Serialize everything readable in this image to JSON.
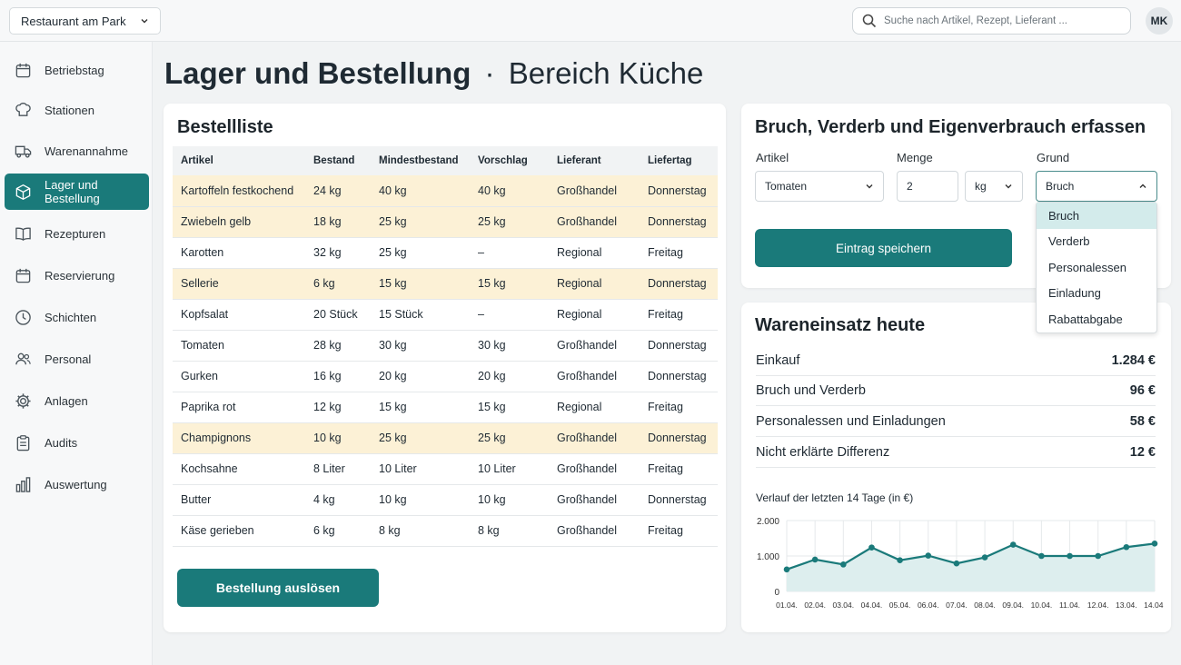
{
  "header": {
    "restaurant": "Restaurant am Park",
    "search_placeholder": "Suche nach Artikel, Rezept, Lieferant ...",
    "user_initials": "MK"
  },
  "sidebar": {
    "items": [
      {
        "label": "Betriebstag",
        "icon": "calendar-icon"
      },
      {
        "label": "Stationen",
        "icon": "chef-hat-icon"
      },
      {
        "label": "Warenannahme",
        "icon": "truck-icon"
      },
      {
        "label": "Lager und Bestellung",
        "icon": "box-icon",
        "active": true
      },
      {
        "label": "Rezepturen",
        "icon": "book-icon"
      },
      {
        "label": "Reservierung",
        "icon": "calendar-icon"
      },
      {
        "label": "Schichten",
        "icon": "clock-icon"
      },
      {
        "label": "Personal",
        "icon": "people-icon"
      },
      {
        "label": "Anlagen",
        "icon": "gear-icon"
      },
      {
        "label": "Audits",
        "icon": "clipboard-icon"
      },
      {
        "label": "Auswertung",
        "icon": "bar-chart-icon"
      }
    ]
  },
  "page": {
    "title": "Lager und Bestellung",
    "separator": "·",
    "subtitle": "Bereich Küche"
  },
  "order_list": {
    "title": "Bestellliste",
    "columns": [
      "Artikel",
      "Bestand",
      "Mindestbestand",
      "Vorschlag",
      "Lieferant",
      "Liefertag"
    ],
    "rows": [
      {
        "cells": [
          "Kartoffeln festkochend",
          "24 kg",
          "40 kg",
          "40 kg",
          "Großhandel",
          "Donnerstag"
        ],
        "low": true
      },
      {
        "cells": [
          "Zwiebeln gelb",
          "18 kg",
          "25 kg",
          "25 kg",
          "Großhandel",
          "Donnerstag"
        ],
        "low": true
      },
      {
        "cells": [
          "Karotten",
          "32 kg",
          "25 kg",
          "–",
          "Regional",
          "Freitag"
        ],
        "low": false
      },
      {
        "cells": [
          "Sellerie",
          "6 kg",
          "15 kg",
          "15 kg",
          "Regional",
          "Donnerstag"
        ],
        "low": true
      },
      {
        "cells": [
          "Kopfsalat",
          "20 Stück",
          "15 Stück",
          "–",
          "Regional",
          "Freitag"
        ],
        "low": false
      },
      {
        "cells": [
          "Tomaten",
          "28 kg",
          "30 kg",
          "30 kg",
          "Großhandel",
          "Donnerstag"
        ],
        "low": false
      },
      {
        "cells": [
          "Gurken",
          "16 kg",
          "20 kg",
          "20 kg",
          "Großhandel",
          "Donnerstag"
        ],
        "low": false
      },
      {
        "cells": [
          "Paprika rot",
          "12 kg",
          "15 kg",
          "15 kg",
          "Regional",
          "Freitag"
        ],
        "low": false
      },
      {
        "cells": [
          "Champignons",
          "10 kg",
          "25 kg",
          "25 kg",
          "Großhandel",
          "Donnerstag"
        ],
        "low": true
      },
      {
        "cells": [
          "Kochsahne",
          "8 Liter",
          "10 Liter",
          "10 Liter",
          "Großhandel",
          "Freitag"
        ],
        "low": false
      },
      {
        "cells": [
          "Butter",
          "4 kg",
          "10 kg",
          "10 kg",
          "Großhandel",
          "Donnerstag"
        ],
        "low": false
      },
      {
        "cells": [
          "Käse gerieben",
          "6 kg",
          "8 kg",
          "8 kg",
          "Großhandel",
          "Freitag"
        ],
        "low": false
      }
    ],
    "submit_label": "Bestellung auslösen",
    "colors": {
      "low_stock_row": "#fcf1d6",
      "accent": "#1a7a7a"
    }
  },
  "waste_form": {
    "title": "Bruch, Verderb und Eigenverbrauch erfassen",
    "article_label": "Artikel",
    "article_value": "Tomaten",
    "quantity_label": "Menge",
    "quantity_value": "2",
    "unit_value": "kg",
    "reason_label": "Grund",
    "reason_value": "Bruch",
    "reason_options": [
      "Bruch",
      "Verderb",
      "Personalessen",
      "Einladung",
      "Rabattabgabe"
    ],
    "save_label": "Eintrag speichern"
  },
  "costs": {
    "title": "Wareneinsatz heute",
    "rows": [
      {
        "label": "Einkauf",
        "value": "1.284 €"
      },
      {
        "label": "Bruch und Verderb",
        "value": "96 €"
      },
      {
        "label": "Personalessen und Einladungen",
        "value": "58 €"
      },
      {
        "label": "Nicht erklärte Differenz",
        "value": "12 €"
      }
    ],
    "chart_title": "Verlauf der letzten 14 Tage (in €)"
  },
  "chart_data": {
    "type": "area",
    "title": "Verlauf der letzten 14 Tage (in €)",
    "x": [
      "01.04.",
      "02.04.",
      "03.04.",
      "04.04.",
      "05.04.",
      "06.04.",
      "07.04.",
      "08.04.",
      "09.04.",
      "10.04.",
      "11.04.",
      "12.04.",
      "13.04.",
      "14.04."
    ],
    "y_ticks": [
      "0",
      "1.000",
      "2.000"
    ],
    "values": [
      620,
      900,
      760,
      1240,
      880,
      1010,
      790,
      960,
      1320,
      1000,
      1000,
      1000,
      1250,
      1350
    ],
    "ylim": [
      0,
      2000
    ],
    "color": "#1a7a7a",
    "fill": "#ddeeee",
    "grid": true
  }
}
